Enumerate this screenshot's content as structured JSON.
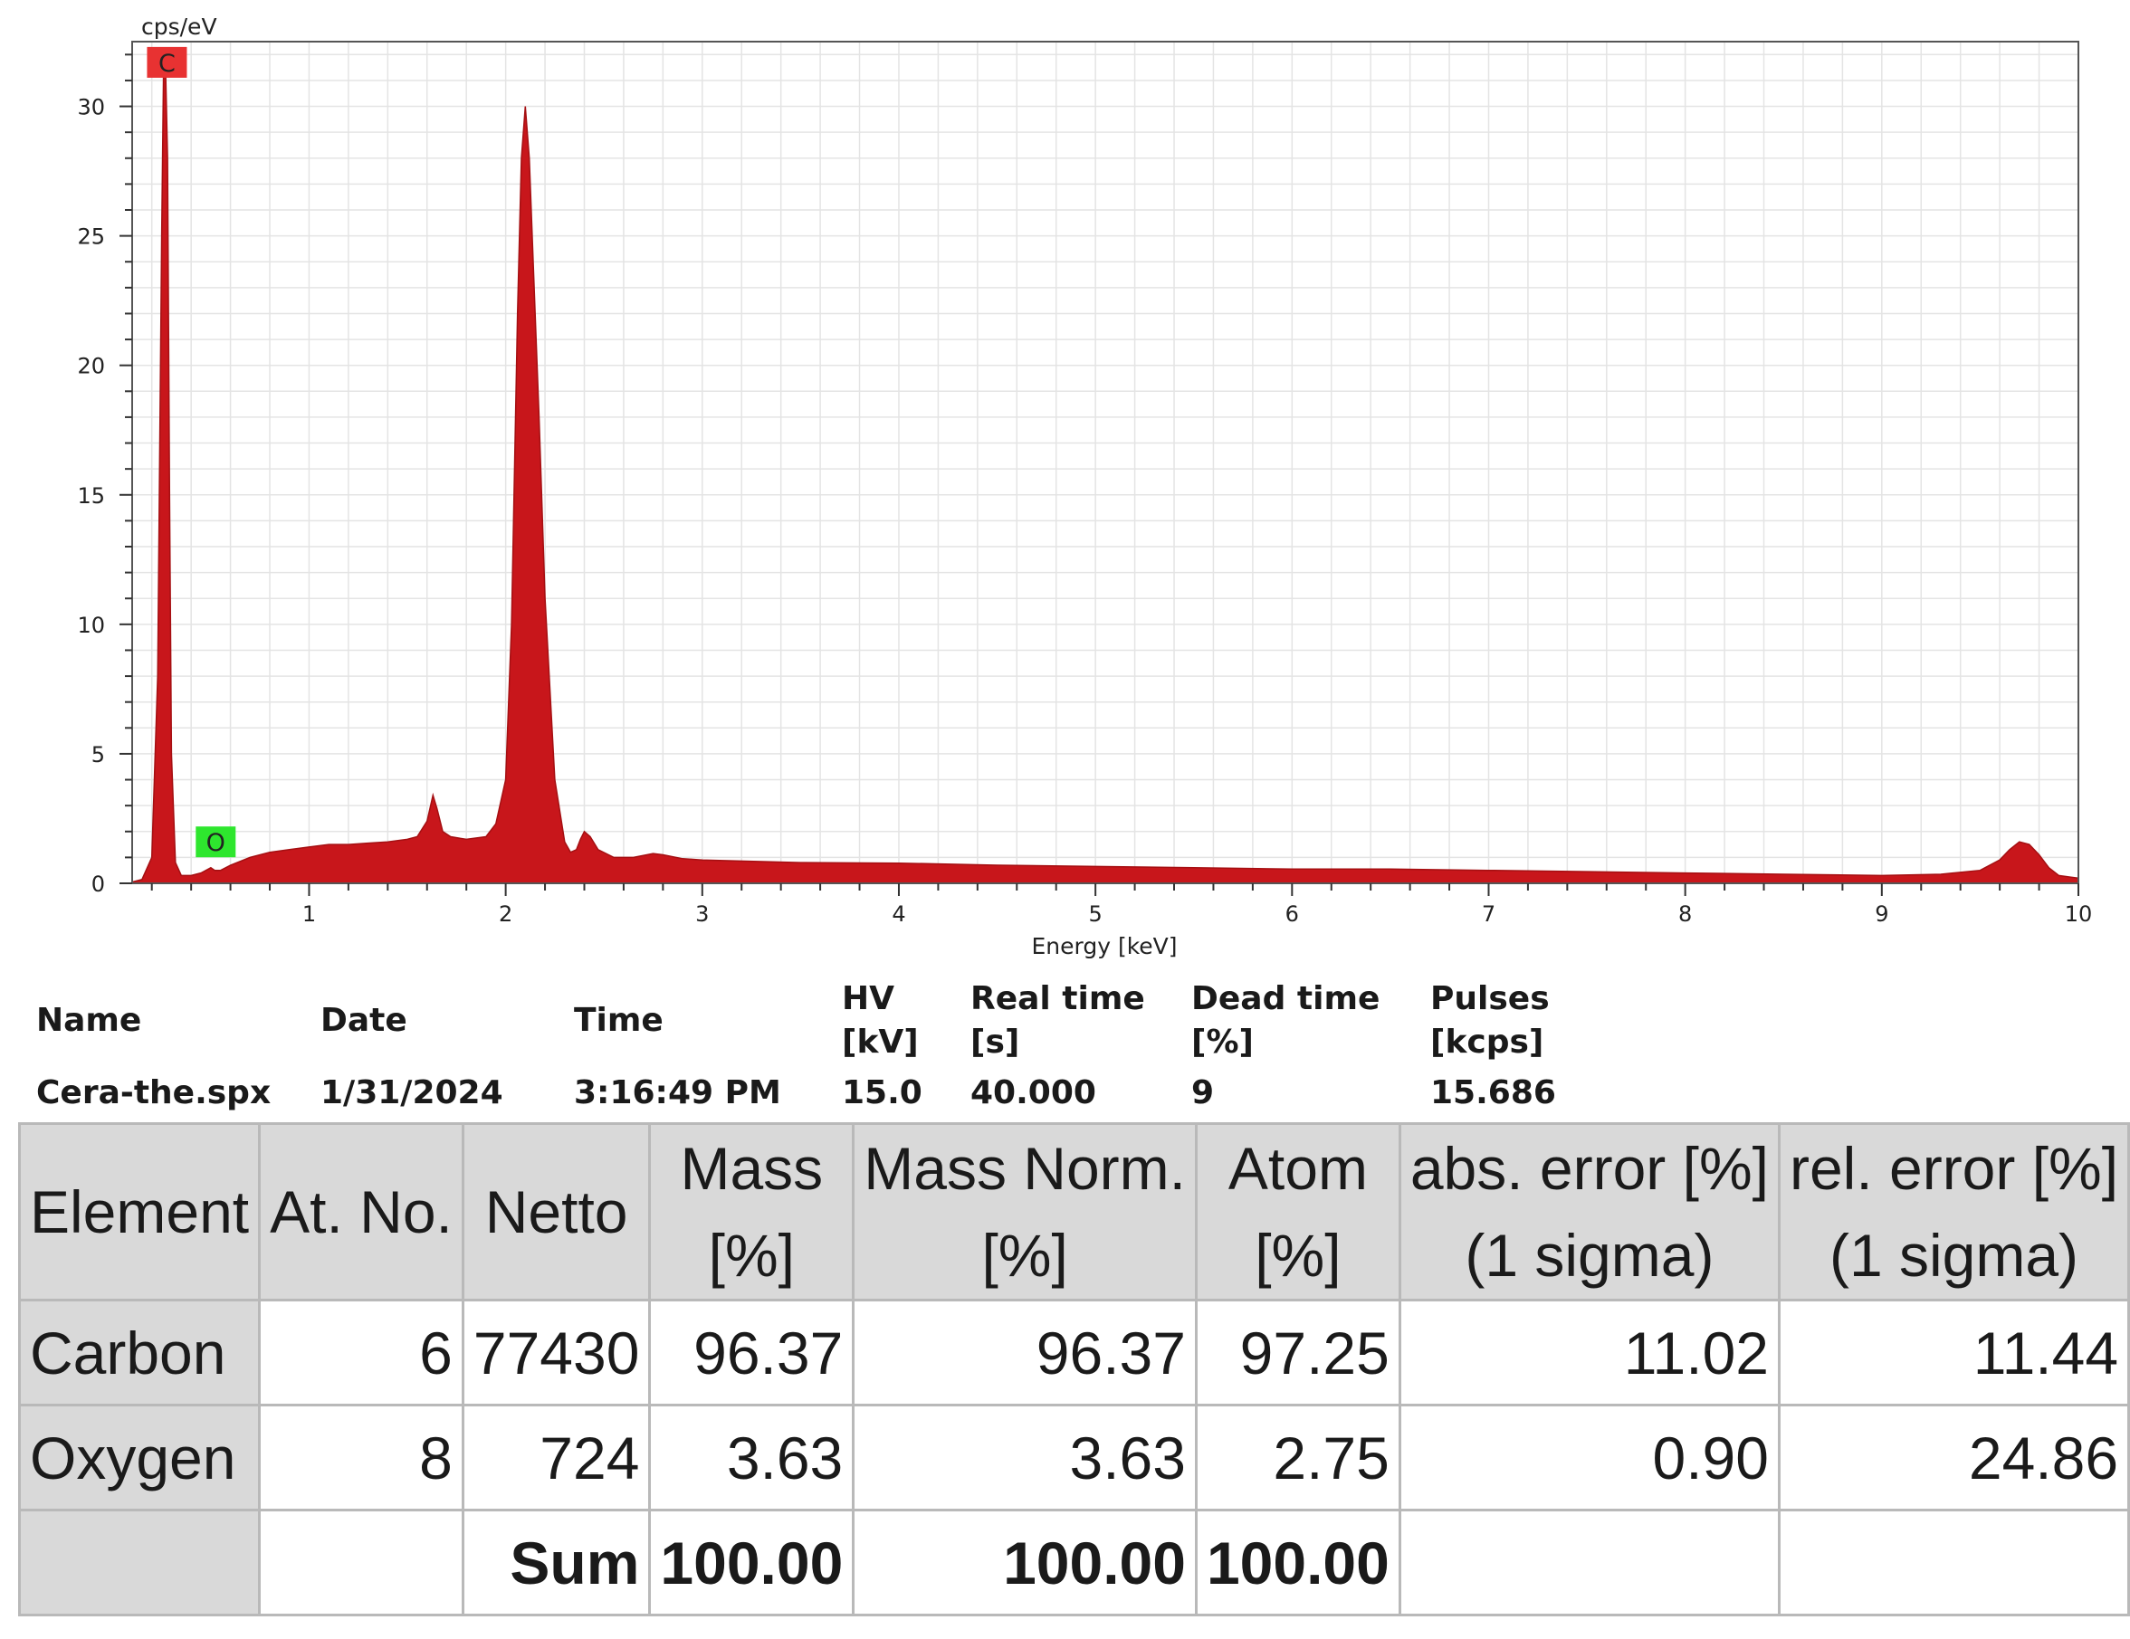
{
  "chart_data": {
    "type": "area",
    "ylabel": "cps/eV",
    "xlabel": "Energy [keV]",
    "xlim": [
      0.1,
      10
    ],
    "ylim": [
      0,
      32.5
    ],
    "xticks": [
      1,
      2,
      3,
      4,
      5,
      6,
      7,
      8,
      9,
      10
    ],
    "yticks": [
      0,
      5,
      10,
      15,
      20,
      25,
      30
    ],
    "grid": true,
    "series": [
      {
        "color": "#c8161b",
        "x": [
          0.1,
          0.15,
          0.2,
          0.23,
          0.25,
          0.26,
          0.27,
          0.28,
          0.29,
          0.3,
          0.32,
          0.35,
          0.4,
          0.45,
          0.5,
          0.52,
          0.55,
          0.6,
          0.7,
          0.8,
          0.9,
          1.0,
          1.1,
          1.2,
          1.3,
          1.4,
          1.5,
          1.55,
          1.6,
          1.63,
          1.65,
          1.68,
          1.72,
          1.8,
          1.9,
          1.95,
          2.0,
          2.03,
          2.06,
          2.08,
          2.1,
          2.12,
          2.14,
          2.17,
          2.2,
          2.25,
          2.3,
          2.33,
          2.36,
          2.38,
          2.4,
          2.43,
          2.47,
          2.55,
          2.65,
          2.75,
          2.8,
          2.9,
          3.0,
          3.5,
          4.0,
          4.5,
          5.0,
          5.5,
          6.0,
          6.5,
          7.0,
          7.5,
          8.0,
          8.5,
          9.0,
          9.3,
          9.5,
          9.6,
          9.65,
          9.7,
          9.75,
          9.8,
          9.85,
          9.9,
          10.0
        ],
        "y": [
          0.05,
          0.15,
          1.0,
          8.0,
          25.0,
          31.5,
          31.5,
          28.0,
          15.0,
          5.0,
          0.8,
          0.3,
          0.3,
          0.4,
          0.6,
          0.5,
          0.5,
          0.7,
          1.0,
          1.2,
          1.3,
          1.4,
          1.5,
          1.5,
          1.55,
          1.6,
          1.7,
          1.8,
          2.4,
          3.4,
          2.9,
          2.0,
          1.8,
          1.7,
          1.8,
          2.3,
          4.0,
          10.0,
          22.0,
          28.0,
          30.0,
          28.0,
          24.0,
          18.0,
          11.0,
          4.0,
          1.6,
          1.2,
          1.3,
          1.7,
          2.0,
          1.8,
          1.3,
          1.0,
          1.0,
          1.15,
          1.1,
          0.95,
          0.9,
          0.8,
          0.78,
          0.7,
          0.65,
          0.6,
          0.55,
          0.55,
          0.5,
          0.45,
          0.4,
          0.35,
          0.3,
          0.35,
          0.5,
          0.9,
          1.3,
          1.6,
          1.5,
          1.1,
          0.6,
          0.3,
          0.2
        ]
      }
    ],
    "annotations": [
      {
        "label": "C",
        "x": 0.277,
        "y": 31.7,
        "color": "#e83232"
      },
      {
        "label": "O",
        "x": 0.525,
        "y": 1.6,
        "color": "#2ee62e"
      }
    ]
  },
  "info": {
    "headers": [
      {
        "line1": "Name",
        "line2": ""
      },
      {
        "line1": "Date",
        "line2": ""
      },
      {
        "line1": "Time",
        "line2": ""
      },
      {
        "line1": "HV",
        "line2": "[kV]"
      },
      {
        "line1": "Real time",
        "line2": "[s]"
      },
      {
        "line1": "Dead time",
        "line2": "[%]"
      },
      {
        "line1": "Pulses",
        "line2": "[kcps]"
      }
    ],
    "values": [
      "Cera-the.spx",
      "1/31/2024",
      "3:16:49 PM",
      "15.0",
      "40.000",
      "9",
      "15.686"
    ]
  },
  "table": {
    "headers": [
      {
        "line1": "Element",
        "line2": ""
      },
      {
        "line1": "At. No.",
        "line2": ""
      },
      {
        "line1": "Netto",
        "line2": ""
      },
      {
        "line1": "Mass",
        "line2": "[%]"
      },
      {
        "line1": "Mass Norm.",
        "line2": "[%]"
      },
      {
        "line1": "Atom",
        "line2": "[%]"
      },
      {
        "line1": "abs. error [%]",
        "line2": "(1 sigma)"
      },
      {
        "line1": "rel. error [%]",
        "line2": "(1 sigma)"
      }
    ],
    "rows": [
      [
        "Carbon",
        "6",
        "77430",
        "96.37",
        "96.37",
        "97.25",
        "11.02",
        "11.44"
      ],
      [
        "Oxygen",
        "8",
        "724",
        "3.63",
        "3.63",
        "2.75",
        "0.90",
        "24.86"
      ]
    ],
    "sum_row": [
      "",
      "",
      "Sum",
      "100.00",
      "100.00",
      "100.00",
      "",
      ""
    ]
  }
}
